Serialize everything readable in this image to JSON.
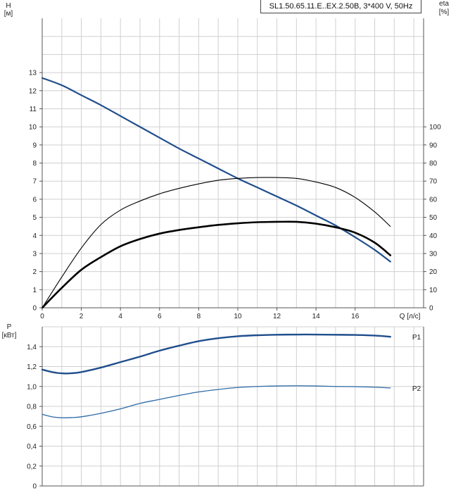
{
  "header": {
    "model": "SL1.50.65.11.E..EX.2.50B, 3*400 V, 50Hz"
  },
  "chart_data": [
    {
      "type": "line",
      "title": "",
      "xlabel": "Q [л/с]",
      "ylabel": "H [м]",
      "y2label": "eta [%]",
      "x_ticks": [
        "0",
        "2",
        "4",
        "6",
        "8",
        "10",
        "12",
        "14",
        "16"
      ],
      "y_ticks": [
        "0",
        "1",
        "2",
        "3",
        "4",
        "5",
        "6",
        "7",
        "8",
        "9",
        "10",
        "11",
        "12",
        "13"
      ],
      "y2_ticks": [
        "0",
        "10",
        "20",
        "30",
        "40",
        "50",
        "60",
        "70",
        "80",
        "90",
        "100"
      ],
      "xlim": [
        0,
        19.5
      ],
      "ylim": [
        0,
        16
      ],
      "y2lim": [
        0,
        160
      ],
      "grid": true,
      "series": [
        {
          "axis": "left",
          "color": "#1f4e8c",
          "x": [
            0,
            1,
            2,
            3,
            4,
            5,
            6,
            7,
            8,
            9,
            10,
            11,
            12,
            13,
            14,
            15,
            16,
            17,
            17.8
          ],
          "y": [
            12.7,
            12.3,
            11.75,
            11.2,
            10.6,
            10.0,
            9.4,
            8.8,
            8.25,
            7.7,
            7.15,
            6.65,
            6.15,
            5.65,
            5.1,
            4.55,
            3.9,
            3.2,
            2.55
          ]
        },
        {
          "axis": "right",
          "color": "#000000",
          "x": [
            0,
            1,
            2,
            3,
            4,
            5,
            6,
            7,
            8,
            9,
            10,
            11,
            12,
            13,
            14,
            15,
            16,
            17,
            17.8
          ],
          "y": [
            0,
            17,
            33,
            46,
            54,
            59,
            63,
            66,
            68.5,
            70.5,
            71.5,
            72,
            72,
            71.5,
            69.5,
            66.5,
            61,
            53,
            45
          ]
        },
        {
          "axis": "right",
          "color": "#000000",
          "x": [
            0,
            1,
            2,
            3,
            4,
            5,
            6,
            7,
            8,
            9,
            10,
            11,
            12,
            13,
            14,
            15,
            16,
            17,
            17.8
          ],
          "y": [
            0,
            11,
            21,
            28,
            34,
            38,
            41,
            43,
            44.5,
            45.8,
            46.7,
            47.3,
            47.5,
            47.5,
            46.5,
            44.5,
            41.5,
            36,
            29
          ]
        }
      ]
    },
    {
      "type": "line",
      "title": "",
      "xlabel": "",
      "ylabel": "P [кВт]",
      "y_ticks": [
        "0",
        "0,2",
        "0,4",
        "0,6",
        "0,8",
        "1,0",
        "1,2",
        "1,4"
      ],
      "xlim": [
        0,
        19.5
      ],
      "ylim": [
        0,
        1.6
      ],
      "grid": true,
      "series": [
        {
          "name": "P1",
          "color": "#1f4e8c",
          "x": [
            0,
            0.5,
            1,
            1.5,
            2,
            3,
            4,
            5,
            6,
            7,
            8,
            9,
            10,
            11,
            12,
            13,
            14,
            15,
            16,
            17,
            17.8
          ],
          "y": [
            1.17,
            1.145,
            1.132,
            1.133,
            1.145,
            1.19,
            1.245,
            1.3,
            1.36,
            1.41,
            1.455,
            1.485,
            1.505,
            1.515,
            1.52,
            1.522,
            1.522,
            1.52,
            1.518,
            1.512,
            1.5
          ]
        },
        {
          "name": "P2",
          "color": "#2d6aa6",
          "x": [
            0,
            0.5,
            1,
            1.5,
            2,
            3,
            4,
            5,
            6,
            7,
            8,
            9,
            10,
            11,
            12,
            13,
            14,
            15,
            16,
            17,
            17.8
          ],
          "y": [
            0.72,
            0.695,
            0.686,
            0.687,
            0.695,
            0.73,
            0.775,
            0.83,
            0.87,
            0.91,
            0.945,
            0.97,
            0.99,
            1.0,
            1.005,
            1.007,
            1.005,
            1.0,
            0.998,
            0.993,
            0.985
          ]
        }
      ]
    }
  ]
}
